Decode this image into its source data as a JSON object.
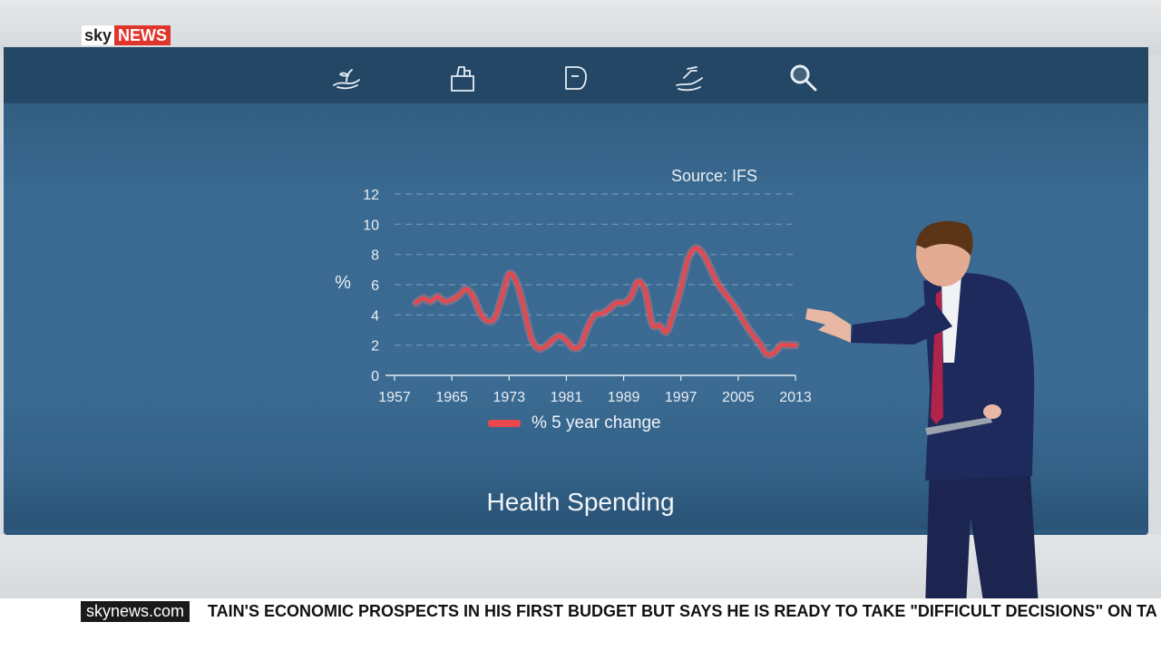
{
  "brand": {
    "sky": "sky",
    "news": "NEWS"
  },
  "nav_icons": [
    "hand-seedling-icon",
    "thumbs-up-icon",
    "bag-icon",
    "hand-coins-icon",
    "magnifier-icon"
  ],
  "screen": {
    "title": "Health Spending",
    "source": "Source: IFS"
  },
  "chart_data": {
    "type": "line",
    "title": "",
    "xlabel": "",
    "ylabel": "%",
    "x_ticks": [
      "1957",
      "1965",
      "1973",
      "1981",
      "1989",
      "1997",
      "2005",
      "2013"
    ],
    "y_ticks": [
      "0",
      "2",
      "4",
      "6",
      "8",
      "10",
      "12"
    ],
    "xlim": [
      1957,
      2013
    ],
    "ylim": [
      0,
      12
    ],
    "grid": true,
    "legend_position": "bottom",
    "series": [
      {
        "name": "% 5 year change",
        "color": "#e8484d",
        "x": [
          1960,
          1961,
          1962,
          1963,
          1964,
          1965,
          1966,
          1967,
          1968,
          1969,
          1970,
          1971,
          1972,
          1973,
          1974,
          1975,
          1976,
          1977,
          1978,
          1979,
          1980,
          1981,
          1982,
          1983,
          1984,
          1985,
          1986,
          1987,
          1988,
          1989,
          1990,
          1991,
          1992,
          1993,
          1994,
          1995,
          1996,
          1997,
          1998,
          1999,
          2000,
          2001,
          2002,
          2003,
          2004,
          2005,
          2006,
          2007,
          2008,
          2009,
          2010,
          2011,
          2012,
          2013
        ],
        "y": [
          4.8,
          5.1,
          4.9,
          5.2,
          4.9,
          5.0,
          5.3,
          5.7,
          5.2,
          4.1,
          3.6,
          3.8,
          5.2,
          6.7,
          6.2,
          4.6,
          2.6,
          1.8,
          1.9,
          2.3,
          2.6,
          2.3,
          1.8,
          2.0,
          3.2,
          4.0,
          4.1,
          4.4,
          4.8,
          4.8,
          5.2,
          6.2,
          5.6,
          3.4,
          3.3,
          2.9,
          4.2,
          5.8,
          7.7,
          8.4,
          8.1,
          7.2,
          6.2,
          5.5,
          4.9,
          4.2,
          3.4,
          2.7,
          2.1,
          1.4,
          1.5,
          2.0,
          2.0,
          2.0
        ]
      }
    ]
  },
  "ticker": {
    "brand": "skynews.com",
    "text": "TAIN'S ECONOMIC PROSPECTS IN HIS FIRST BUDGET BUT SAYS HE IS READY TO TAKE \"DIFFICULT DECISIONS\" ON TA"
  }
}
